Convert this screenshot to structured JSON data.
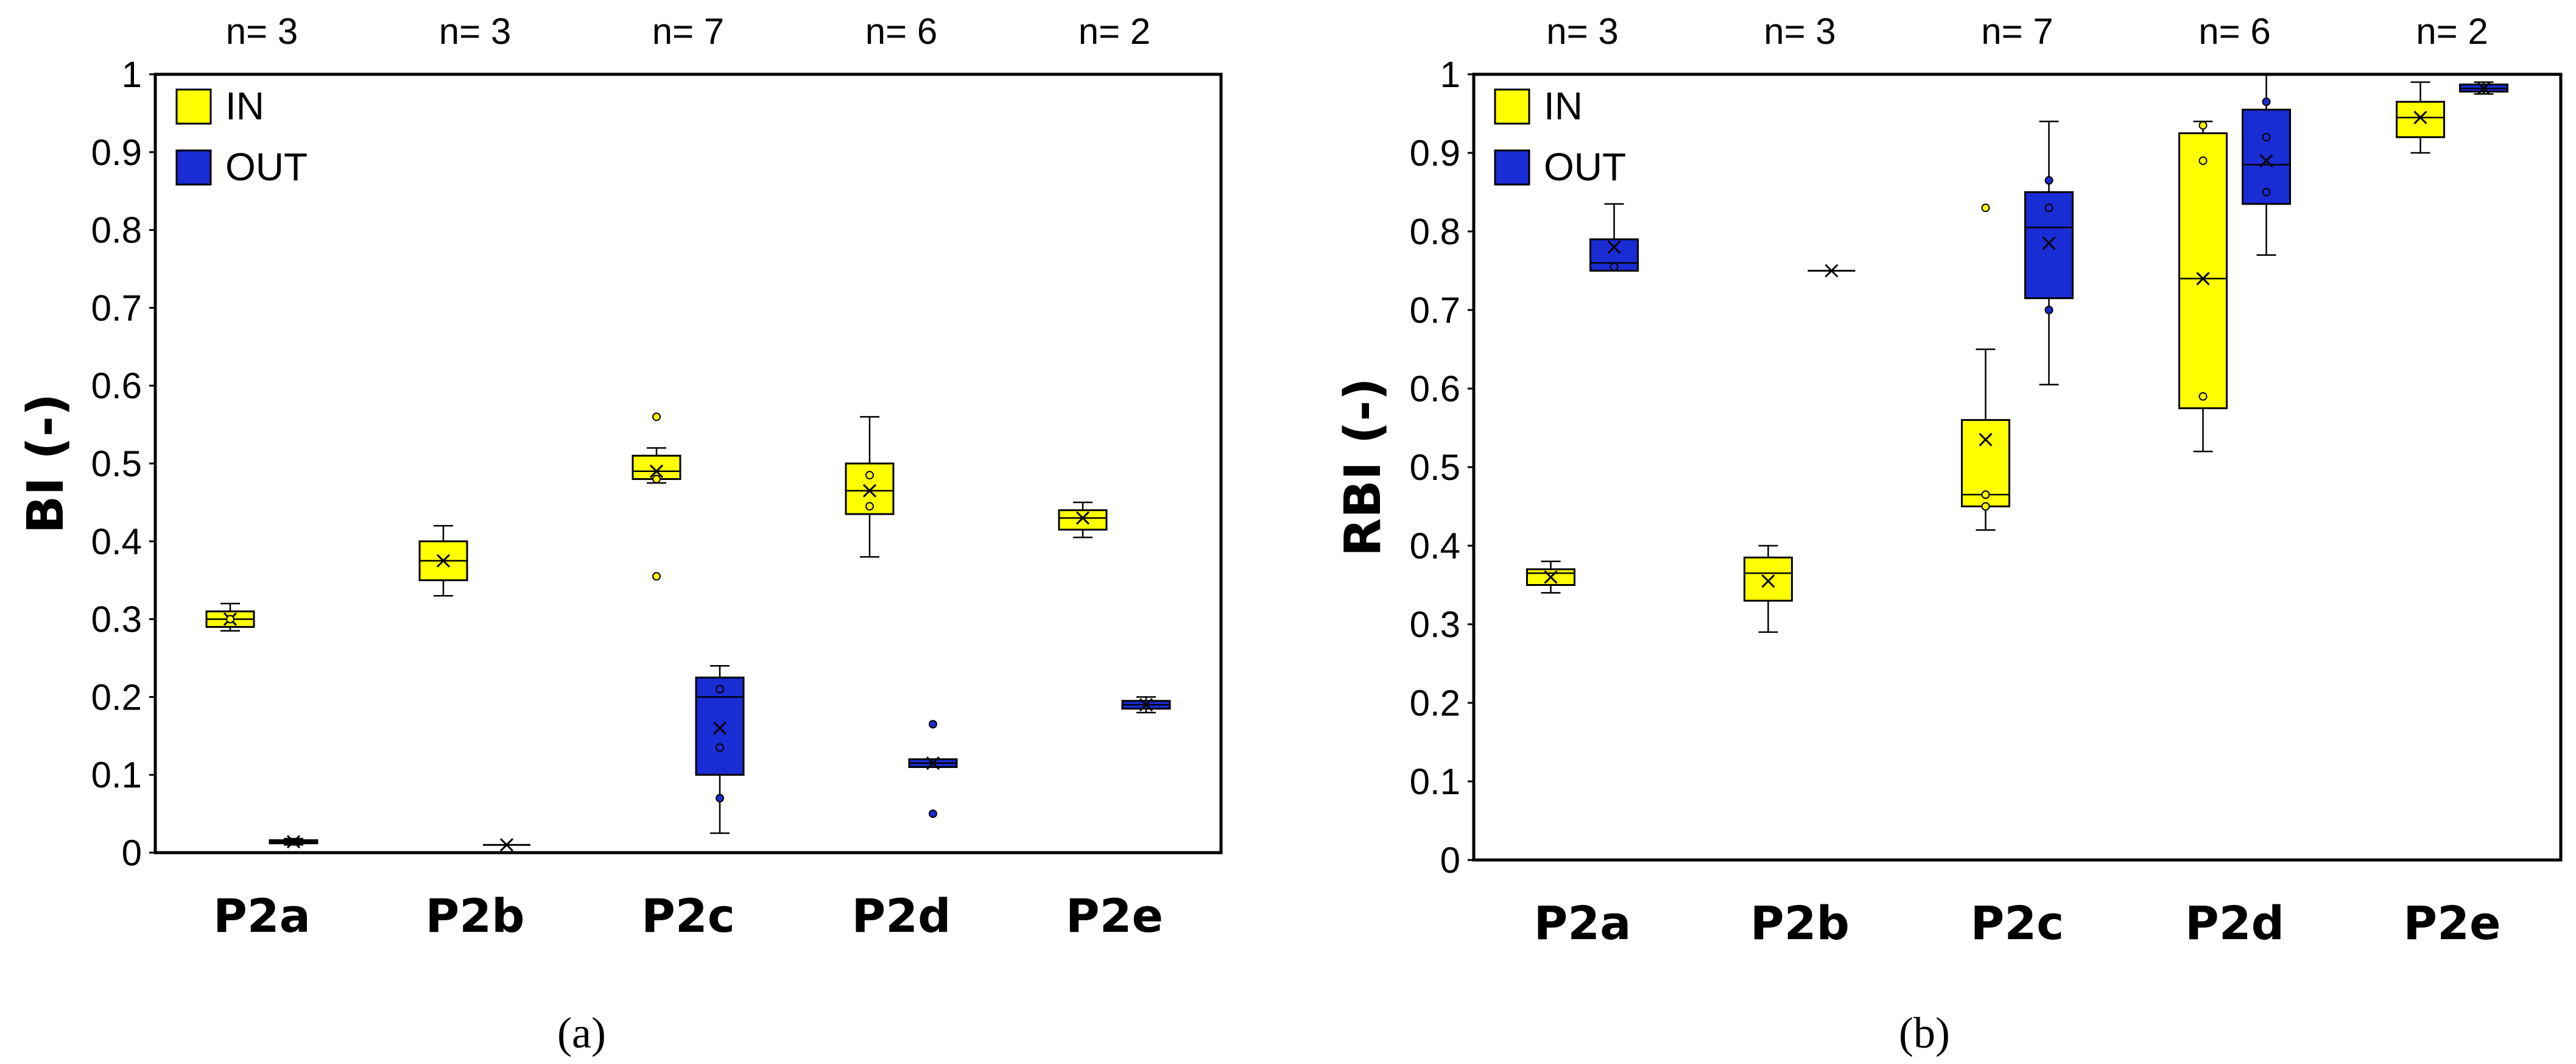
{
  "colors": {
    "in": "#ffff00",
    "out": "#1a2cd4",
    "axis": "#000000"
  },
  "chart_data": [
    {
      "type": "box",
      "panel": "a",
      "caption": "(a)",
      "ylabel": "BI (-)",
      "ylim": [
        0,
        1
      ],
      "yticks": [
        "0",
        "0.1",
        "0.2",
        "0.3",
        "0.4",
        "0.5",
        "0.6",
        "0.7",
        "0.8",
        "0.9",
        "1"
      ],
      "categories": [
        "P2a",
        "P2b",
        "P2c",
        "P2d",
        "P2e"
      ],
      "n_labels": [
        "n= 3",
        "n= 3",
        "n= 7",
        "n= 6",
        "n= 2"
      ],
      "legend": [
        "IN",
        "OUT"
      ],
      "series": [
        {
          "name": "IN",
          "boxes": [
            {
              "min": 0.285,
              "q1": 0.29,
              "median": 0.3,
              "q3": 0.31,
              "max": 0.32,
              "mean": 0.3,
              "points": [
                0.3
              ]
            },
            {
              "min": 0.33,
              "q1": 0.35,
              "median": 0.375,
              "q3": 0.4,
              "max": 0.42,
              "mean": 0.375,
              "points": []
            },
            {
              "min": 0.475,
              "q1": 0.48,
              "median": 0.49,
              "q3": 0.51,
              "max": 0.52,
              "mean": 0.49,
              "points": [
                0.56,
                0.355,
                0.48
              ]
            },
            {
              "min": 0.38,
              "q1": 0.435,
              "median": 0.465,
              "q3": 0.5,
              "max": 0.56,
              "mean": 0.465,
              "points": [
                0.485,
                0.445
              ]
            },
            {
              "min": 0.405,
              "q1": 0.415,
              "median": 0.43,
              "q3": 0.44,
              "max": 0.45,
              "mean": 0.43,
              "points": []
            }
          ]
        },
        {
          "name": "OUT",
          "boxes": [
            {
              "min": 0.01,
              "q1": 0.012,
              "median": 0.014,
              "q3": 0.016,
              "max": 0.018,
              "mean": 0.014,
              "points": []
            },
            {
              "min": 0.01,
              "q1": 0.01,
              "median": 0.01,
              "q3": 0.01,
              "max": 0.01,
              "mean": 0.01,
              "points": []
            },
            {
              "min": 0.025,
              "q1": 0.1,
              "median": 0.2,
              "q3": 0.225,
              "max": 0.24,
              "mean": 0.16,
              "points": [
                0.07,
                0.135,
                0.21
              ]
            },
            {
              "min": 0.11,
              "q1": 0.11,
              "median": 0.115,
              "q3": 0.12,
              "max": 0.12,
              "mean": 0.115,
              "points": [
                0.165,
                0.05
              ]
            },
            {
              "min": 0.18,
              "q1": 0.185,
              "median": 0.19,
              "q3": 0.195,
              "max": 0.2,
              "mean": 0.19,
              "points": []
            }
          ]
        }
      ]
    },
    {
      "type": "box",
      "panel": "b",
      "caption": "(b)",
      "ylabel": "RBI (-)",
      "ylim": [
        0,
        1
      ],
      "yticks": [
        "0",
        "0.1",
        "0.2",
        "0.3",
        "0.4",
        "0.5",
        "0.6",
        "0.7",
        "0.8",
        "0.9",
        "1"
      ],
      "categories": [
        "P2a",
        "P2b",
        "P2c",
        "P2d",
        "P2e"
      ],
      "n_labels": [
        "n= 3",
        "n= 3",
        "n= 7",
        "n= 6",
        "n= 2"
      ],
      "legend": [
        "IN",
        "OUT"
      ],
      "series": [
        {
          "name": "IN",
          "boxes": [
            {
              "min": 0.34,
              "q1": 0.35,
              "median": 0.365,
              "q3": 0.37,
              "max": 0.38,
              "mean": 0.36,
              "points": []
            },
            {
              "min": 0.29,
              "q1": 0.33,
              "median": 0.365,
              "q3": 0.385,
              "max": 0.4,
              "mean": 0.355,
              "points": []
            },
            {
              "min": 0.42,
              "q1": 0.45,
              "median": 0.465,
              "q3": 0.56,
              "max": 0.65,
              "mean": 0.535,
              "points": [
                0.83,
                0.465,
                0.45
              ]
            },
            {
              "min": 0.52,
              "q1": 0.575,
              "median": 0.74,
              "q3": 0.925,
              "max": 0.94,
              "mean": 0.74,
              "points": [
                0.89,
                0.59,
                0.935
              ]
            },
            {
              "min": 0.9,
              "q1": 0.92,
              "median": 0.945,
              "q3": 0.965,
              "max": 0.99,
              "mean": 0.945,
              "points": []
            }
          ]
        },
        {
          "name": "OUT",
          "boxes": [
            {
              "min": 0.75,
              "q1": 0.75,
              "median": 0.76,
              "q3": 0.79,
              "max": 0.835,
              "mean": 0.78,
              "points": [
                0.755
              ]
            },
            {
              "min": 0.75,
              "q1": 0.75,
              "median": 0.75,
              "q3": 0.75,
              "max": 0.75,
              "mean": 0.75,
              "points": []
            },
            {
              "min": 0.605,
              "q1": 0.715,
              "median": 0.805,
              "q3": 0.85,
              "max": 0.94,
              "mean": 0.785,
              "points": [
                0.865,
                0.83,
                0.7
              ]
            },
            {
              "min": 0.77,
              "q1": 0.835,
              "median": 0.885,
              "q3": 0.955,
              "max": 1.0,
              "mean": 0.89,
              "points": [
                0.965,
                0.92,
                0.85
              ]
            },
            {
              "min": 0.975,
              "q1": 0.978,
              "median": 0.982,
              "q3": 0.987,
              "max": 0.99,
              "mean": 0.982,
              "points": []
            }
          ]
        }
      ]
    }
  ]
}
